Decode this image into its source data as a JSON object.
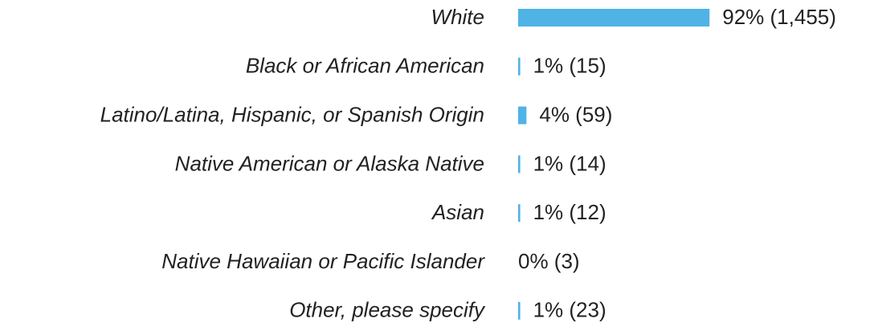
{
  "chart_data": {
    "type": "bar",
    "orientation": "horizontal",
    "categories": [
      "White",
      "Black or African American",
      "Latino/Latina, Hispanic, or Spanish Origin",
      "Native American or Alaska Native",
      "Asian",
      "Native Hawaiian or Pacific Islander",
      "Other, please specify"
    ],
    "values": [
      92,
      1,
      4,
      1,
      1,
      0,
      1
    ],
    "value_labels": [
      "92% (1,455)",
      "1% (15)",
      "4% (59)",
      "1% (14)",
      "1% (12)",
      "0% (3)",
      "1% (23)"
    ],
    "color": "#4fb3e6"
  }
}
